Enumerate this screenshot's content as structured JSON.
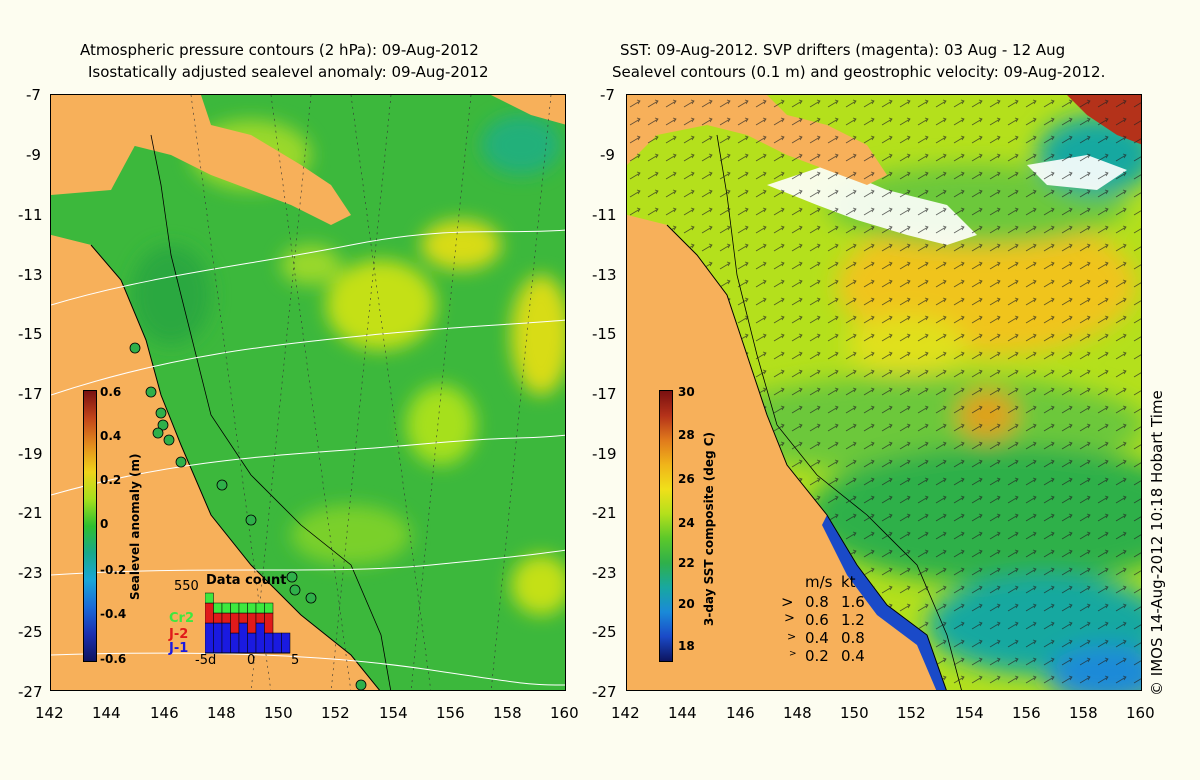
{
  "left_panel": {
    "title_line1": "Atmospheric pressure contours (2 hPa): 09-Aug-2012",
    "title_line2": "Isostatically adjusted sealevel anomaly: 09-Aug-2012",
    "colorbar": {
      "title": "Sealevel anomaly (m)",
      "labels": [
        "0.6",
        "0.4",
        "0.2",
        "0",
        "-0.2",
        "-0.4",
        "-0.6"
      ],
      "colors": [
        "#7a1010",
        "#c2451a",
        "#e38c1c",
        "#f0d31a",
        "#a6e01c",
        "#2fbf2f",
        "#18a88a",
        "#1aa7d8",
        "#1a6ad8",
        "#1a2fb0",
        "#0d1460"
      ]
    },
    "data_count": {
      "title": "Data count",
      "max_label": "550",
      "series_labels": [
        "Cr2",
        "J-2",
        "J-1"
      ],
      "series_colors": [
        "#3ee83e",
        "#e01a1a",
        "#1a1ae0"
      ],
      "x_ticks": [
        "-5d",
        "0",
        "5"
      ],
      "bars": [
        {
          "j1": 3,
          "j2": 2,
          "cr2": 1
        },
        {
          "j1": 3,
          "j2": 1,
          "cr2": 1
        },
        {
          "j1": 3,
          "j2": 1,
          "cr2": 1
        },
        {
          "j1": 2,
          "j2": 2,
          "cr2": 1
        },
        {
          "j1": 3,
          "j2": 1,
          "cr2": 1
        },
        {
          "j1": 2,
          "j2": 2,
          "cr2": 1
        },
        {
          "j1": 3,
          "j2": 1,
          "cr2": 1
        },
        {
          "j1": 2,
          "j2": 2,
          "cr2": 1
        },
        {
          "j1": 2,
          "j2": 0,
          "cr2": 0
        },
        {
          "j1": 2,
          "j2": 0,
          "cr2": 0
        }
      ]
    }
  },
  "right_panel": {
    "title_line1": "SST: 09-Aug-2012. SVP drifters (magenta): 03 Aug - 12 Aug",
    "title_line2": "Sealevel contours (0.1 m) and geostrophic velocity: 09-Aug-2012.",
    "colorbar": {
      "title": "3-day SST composite (deg C)",
      "labels": [
        "30",
        "28",
        "26",
        "24",
        "22",
        "20",
        "18"
      ],
      "colors": [
        "#7a1010",
        "#b4321a",
        "#e07a1c",
        "#f0b41a",
        "#f0e01a",
        "#b4e01c",
        "#5cc82a",
        "#2fb04a",
        "#18a8a0",
        "#1a8ad8",
        "#1a4ac8",
        "#0d1460"
      ]
    },
    "velocity_legend": {
      "header_ms": "m/s",
      "header_kt": "kt",
      "rows": [
        {
          "ms": "0.8",
          "kt": "1.6"
        },
        {
          "ms": "0.6",
          "kt": "1.2"
        },
        {
          "ms": "0.4",
          "kt": "0.8"
        },
        {
          "ms": "0.2",
          "kt": "0.4"
        }
      ]
    }
  },
  "axes": {
    "lat_labels": [
      "-7",
      "-9",
      "-11",
      "-13",
      "-15",
      "-17",
      "-19",
      "-21",
      "-23",
      "-25",
      "-27"
    ],
    "lon_labels": [
      "142",
      "144",
      "146",
      "148",
      "150",
      "152",
      "154",
      "156",
      "158",
      "160"
    ]
  },
  "copyright": "© IMOS 14-Aug-2012 10:18 Hobart Time",
  "colors": {
    "land": "#f7b05a",
    "background": "#fdfdf0"
  }
}
